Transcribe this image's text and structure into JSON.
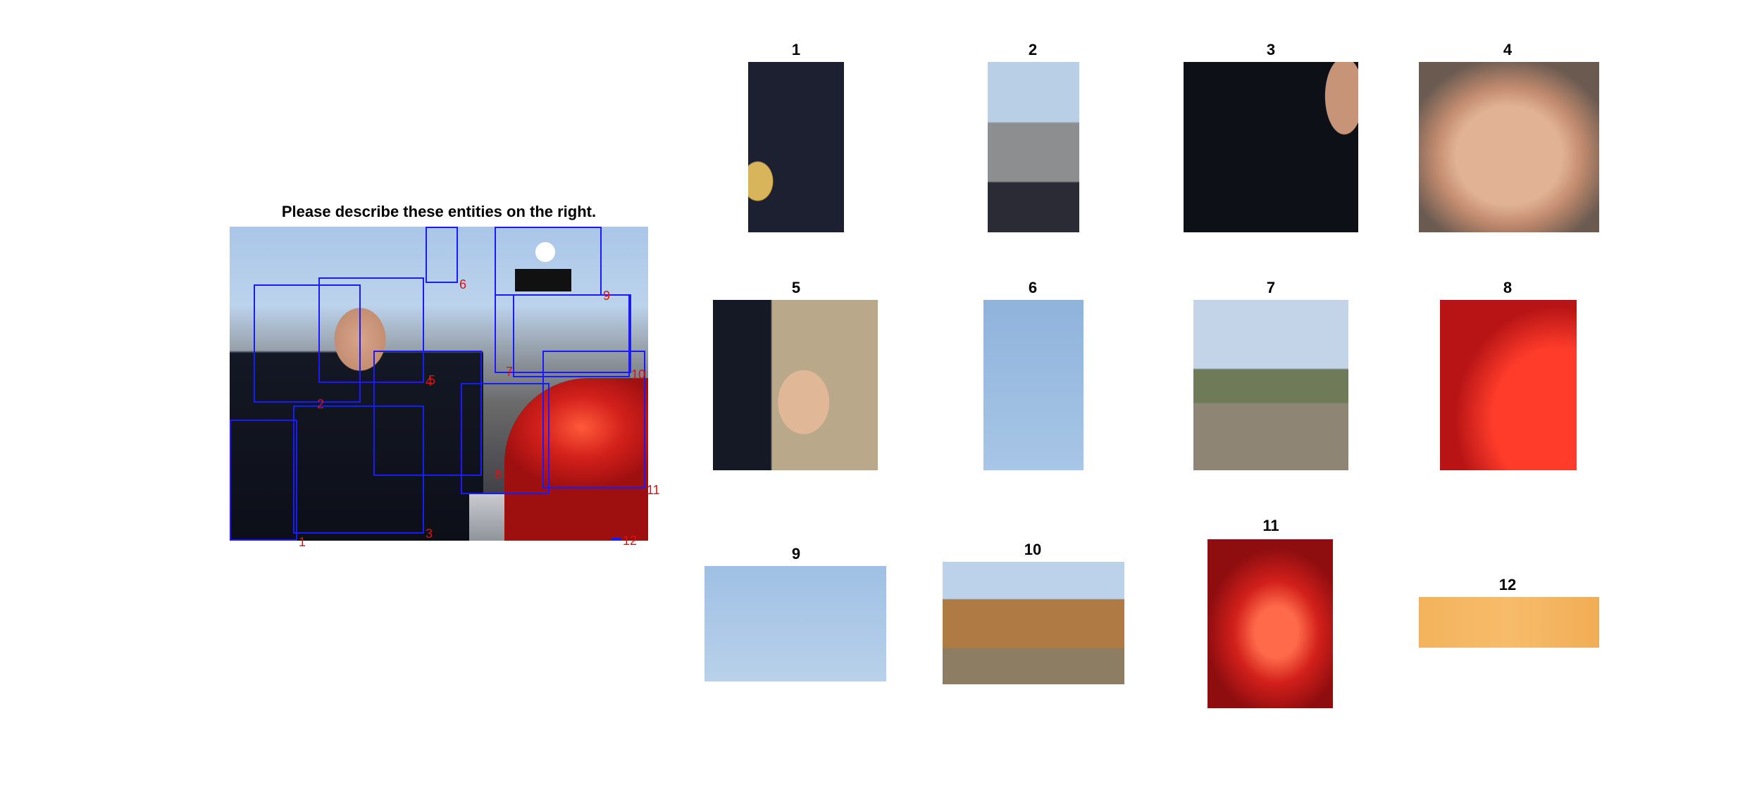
{
  "title": "Please describe these entities on the right.",
  "box_labels": [
    "1",
    "2",
    "3",
    "4",
    "5",
    "6",
    "7",
    "8",
    "9",
    "10",
    "11",
    "12"
  ],
  "crops": [
    {
      "label": "1"
    },
    {
      "label": "2"
    },
    {
      "label": "3"
    },
    {
      "label": "4"
    },
    {
      "label": "5"
    },
    {
      "label": "6"
    },
    {
      "label": "7"
    },
    {
      "label": "8"
    },
    {
      "label": "9"
    },
    {
      "label": "10"
    },
    {
      "label": "11"
    },
    {
      "label": "12"
    }
  ],
  "colors": {
    "box": "#1a1aff",
    "box_label": "#e01010"
  }
}
